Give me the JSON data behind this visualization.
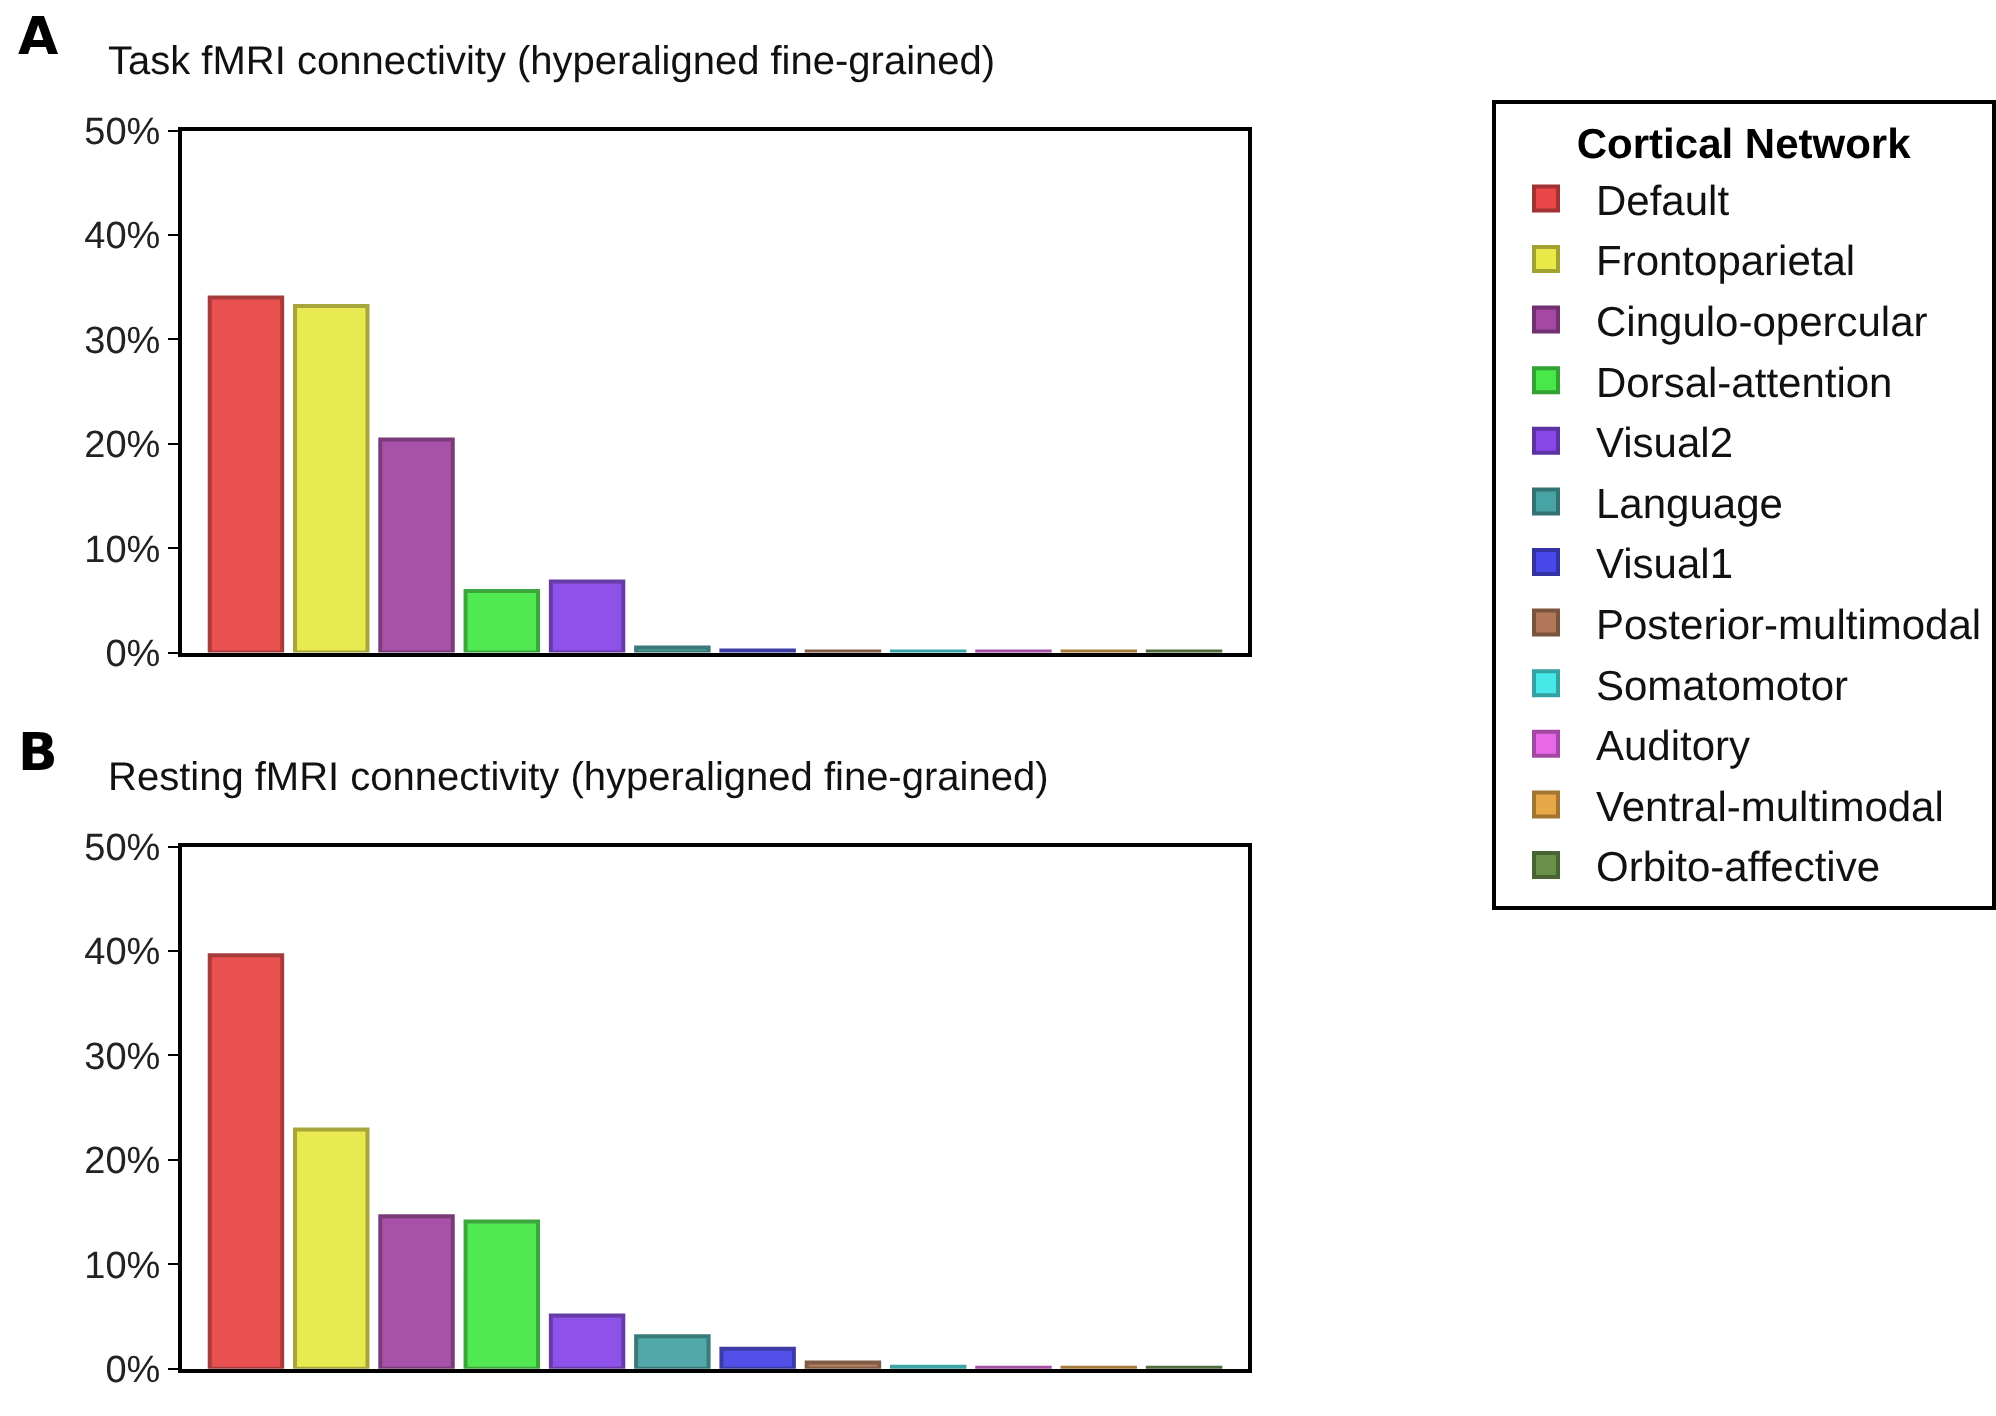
{
  "chart_data": [
    {
      "type": "bar",
      "title": "Task fMRI connectivity (hyperaligned fine-grained)",
      "annotations": [
        "A"
      ],
      "legend_title": "Cortical Network",
      "legend": "right",
      "tick_labels": "y",
      "categories": [
        null,
        null,
        null,
        null,
        null,
        null,
        null,
        null,
        null,
        null,
        null,
        null
      ],
      "series": [
        {
          "name": "Default",
          "color": "#e84848",
          "values": [
            34,
            null,
            null,
            null,
            null,
            null,
            null,
            null,
            null,
            null,
            null,
            null
          ]
        },
        {
          "name": "Frontoparietal",
          "color": "#e8e848",
          "values": [
            null,
            33.2,
            null,
            null,
            null,
            null,
            null,
            null,
            null,
            null,
            null,
            null
          ]
        },
        {
          "name": "Cingulo-opercular",
          "color": "#a448a4",
          "values": [
            null,
            null,
            20.4,
            null,
            null,
            null,
            null,
            null,
            null,
            null,
            null,
            null
          ]
        },
        {
          "name": "Dorsal-attention",
          "color": "#48e848",
          "values": [
            null,
            null,
            null,
            5.9,
            null,
            null,
            null,
            null,
            null,
            null,
            null,
            null
          ]
        },
        {
          "name": "Visual2",
          "color": "#8848e8",
          "values": [
            null,
            null,
            null,
            null,
            6.8,
            null,
            null,
            null,
            null,
            null,
            null,
            null
          ]
        },
        {
          "name": "Language",
          "color": "#48a4a4",
          "values": [
            null,
            null,
            null,
            null,
            null,
            0.5,
            null,
            null,
            null,
            null,
            null,
            null
          ]
        },
        {
          "name": "Visual1",
          "color": "#4848e8",
          "values": [
            null,
            null,
            null,
            null,
            null,
            null,
            0.2,
            null,
            null,
            null,
            null,
            null
          ]
        },
        {
          "name": "Posterior-multimodal",
          "color": "#b07858",
          "values": [
            null,
            null,
            null,
            null,
            null,
            null,
            null,
            0.1,
            null,
            null,
            null,
            null
          ]
        },
        {
          "name": "Somatomotor",
          "color": "#48e8e8",
          "values": [
            null,
            null,
            null,
            null,
            null,
            null,
            null,
            null,
            0.1,
            null,
            null,
            null
          ]
        },
        {
          "name": "Auditory",
          "color": "#e868e8",
          "values": [
            null,
            null,
            null,
            null,
            null,
            null,
            null,
            null,
            null,
            0.1,
            null,
            null
          ]
        },
        {
          "name": "Ventral-multimodal",
          "color": "#e8a848",
          "values": [
            null,
            null,
            null,
            null,
            null,
            null,
            null,
            null,
            null,
            null,
            0.1,
            null
          ]
        },
        {
          "name": "Orbito-affective",
          "color": "#689048",
          "values": [
            null,
            null,
            null,
            null,
            null,
            null,
            null,
            null,
            null,
            null,
            null,
            0.1
          ]
        }
      ],
      "ylim": [
        0,
        50
      ],
      "yticks": [
        {
          "value": 0,
          "label": "0%"
        },
        {
          "value": 10,
          "label": "10%"
        },
        {
          "value": 20,
          "label": "20%"
        },
        {
          "value": 30,
          "label": "30%"
        },
        {
          "value": 40,
          "label": "40%"
        },
        {
          "value": 50,
          "label": "50%"
        }
      ]
    },
    {
      "type": "bar",
      "title": "Resting fMRI connectivity (hyperaligned fine-grained)",
      "annotations": [
        "B"
      ],
      "tick_labels": "y",
      "categories": [
        null,
        null,
        null,
        null,
        null,
        null,
        null,
        null,
        null,
        null,
        null,
        null
      ],
      "colors": [
        "#e84848",
        "#e8e848",
        "#a448a4",
        "#48e848",
        "#8848e8",
        "#48a4a4",
        "#4848e8",
        "#b07858",
        "#48e8e8",
        "#e868e8",
        "#e8a848",
        "#689048"
      ],
      "values": [
        39.6,
        22.9,
        14.6,
        14.1,
        5.1,
        3.1,
        1.9,
        0.6,
        0.2,
        0.1,
        0.1,
        0.1
      ],
      "ylim": [
        0,
        50
      ],
      "yticks": [
        {
          "value": 0,
          "label": "0%"
        },
        {
          "value": 10,
          "label": "10%"
        },
        {
          "value": 20,
          "label": "20%"
        },
        {
          "value": 30,
          "label": "30%"
        },
        {
          "value": 40,
          "label": "40%"
        },
        {
          "value": 50,
          "label": "50%"
        }
      ]
    }
  ]
}
